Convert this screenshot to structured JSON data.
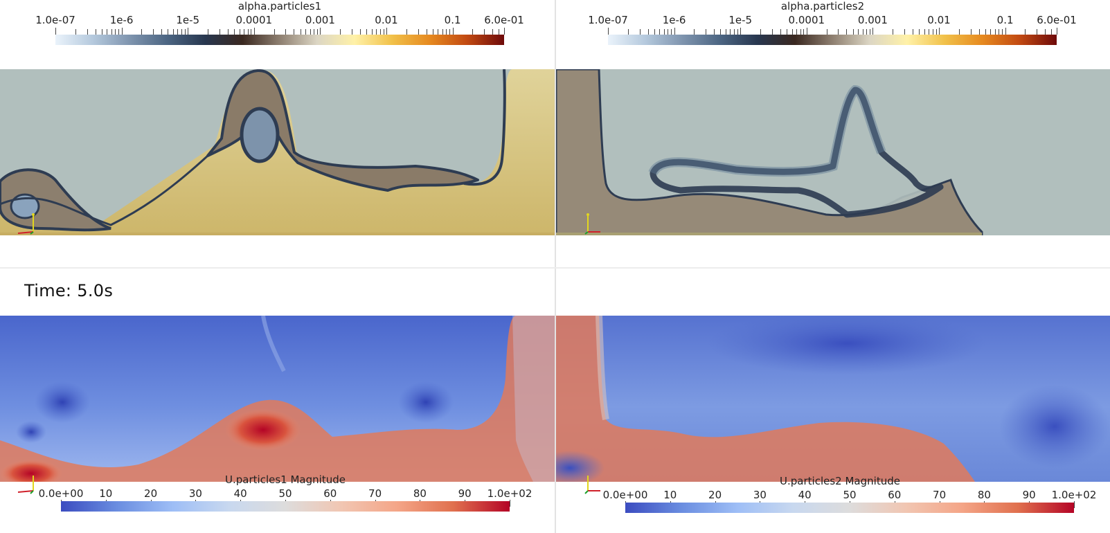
{
  "viewports": {
    "top_left": {
      "legend": {
        "title": "alpha.particles1",
        "labels": [
          "1.0e-07",
          "1e-6",
          "1e-5",
          "0.0001",
          "0.001",
          "0.01",
          "0.1",
          "6.0e-01"
        ]
      }
    },
    "top_right": {
      "legend": {
        "title": "alpha.particles2",
        "labels": [
          "1.0e-07",
          "1e-6",
          "1e-5",
          "0.0001",
          "0.001",
          "0.01",
          "0.1",
          "6.0e-01"
        ]
      }
    },
    "bottom_left": {
      "time_text": "Time: 5.0s",
      "legend": {
        "title": "U.particles1 Magnitude",
        "labels": [
          "0.0e+00",
          "10",
          "20",
          "30",
          "40",
          "50",
          "60",
          "70",
          "80",
          "90",
          "1.0e+02"
        ]
      }
    },
    "bottom_right": {
      "legend": {
        "title": "U.particles2 Magnitude",
        "labels": [
          "0.0e+00",
          "10",
          "20",
          "30",
          "40",
          "50",
          "60",
          "70",
          "80",
          "90",
          "1.0e+02"
        ]
      }
    }
  },
  "colormaps": {
    "alpha": [
      "#eaf3fb",
      "#b5c9dd",
      "#7e94ae",
      "#4c6582",
      "#28374f",
      "#3a2820",
      "#8e7f70",
      "#dcd6c4",
      "#fff1a8",
      "#f1c14a",
      "#e68a20",
      "#c24a12",
      "#6e0a0a"
    ],
    "velocity": [
      "#3b4cc0",
      "#6a8de0",
      "#9ebef6",
      "#c8d8ef",
      "#dddcdc",
      "#f1c6b2",
      "#f4a587",
      "#e0704e",
      "#b40426"
    ]
  },
  "colors": {
    "background_fluid": "#b1bfbd",
    "particle_bed_1": "#d9c98a",
    "particle_bed_2": "#968a78",
    "interface_dark": "#2e3c52",
    "axis_x": "#d0202a",
    "axis_y": "#e2d61e",
    "axis_z": "#1ca02a"
  }
}
